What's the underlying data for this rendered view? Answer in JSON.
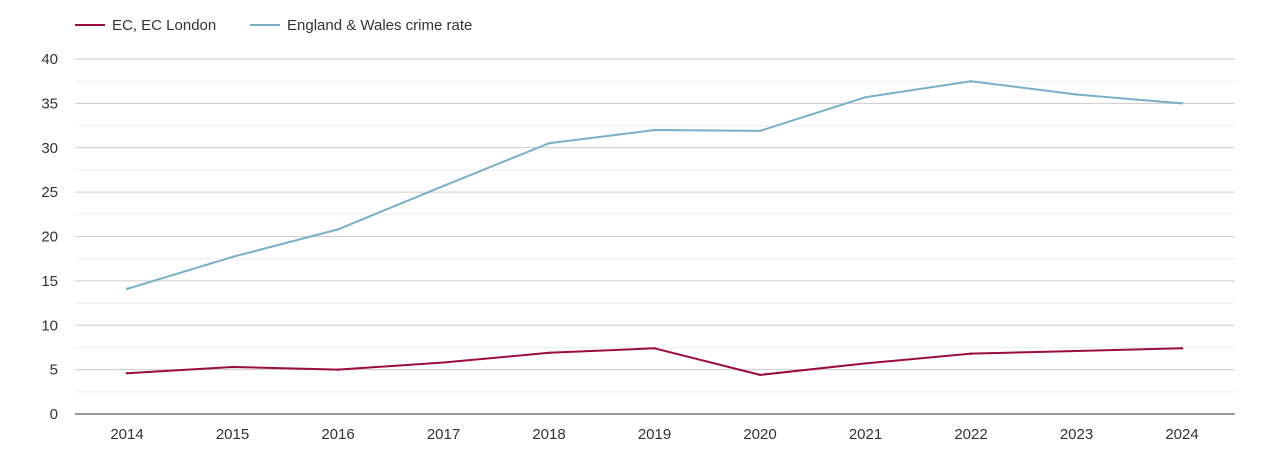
{
  "chart_data": {
    "type": "line",
    "title": "",
    "xlabel": "",
    "ylabel": "",
    "categories": [
      "2014",
      "2015",
      "2016",
      "2017",
      "2018",
      "2019",
      "2020",
      "2021",
      "2022",
      "2023",
      "2024"
    ],
    "series": [
      {
        "name": "EC, EC London",
        "color": "#9b0d3a",
        "values": [
          4.6,
          5.3,
          5.0,
          5.8,
          6.9,
          7.4,
          4.4,
          5.7,
          6.8,
          7.1,
          7.4
        ]
      },
      {
        "name": "England & Wales crime rate",
        "color": "#7aafc8",
        "values": [
          14.1,
          17.7,
          20.8,
          25.7,
          30.5,
          32.0,
          31.9,
          35.7,
          37.5,
          36.0,
          35.0
        ]
      }
    ],
    "ylim": [
      0,
      40
    ],
    "yticks": [
      0,
      5,
      10,
      15,
      20,
      25,
      30,
      35,
      40
    ],
    "grid": true,
    "legend_position": "top-left"
  }
}
